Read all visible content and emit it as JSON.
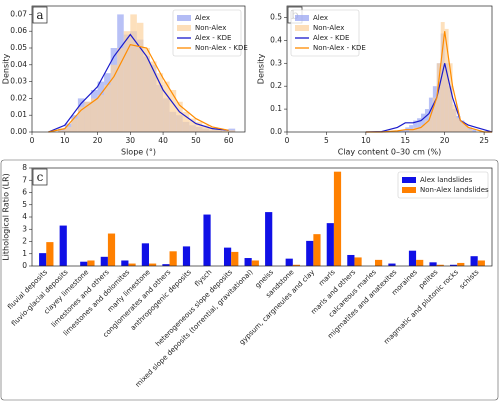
{
  "chart_data": [
    {
      "type": "histogram",
      "label": "a",
      "xlabel": "Slope (°)",
      "ylabel": "Density",
      "xlim": [
        0,
        65
      ],
      "xticks": [
        0,
        10,
        20,
        30,
        40,
        50,
        60
      ],
      "ylim": [
        0,
        0.075
      ],
      "yticks": [
        {
          "value": 0,
          "label": "0.00"
        },
        {
          "value": 0.01,
          "label": "0.01"
        },
        {
          "value": 0.02,
          "label": "0.02"
        },
        {
          "value": 0.03,
          "label": "0.03"
        },
        {
          "value": 0.04,
          "label": "0.04"
        },
        {
          "value": 0.05,
          "label": "0.05"
        },
        {
          "value": 0.06,
          "label": "0.06"
        },
        {
          "value": 0.07,
          "label": "0.07"
        }
      ],
      "legend": "upper right",
      "bins": [
        8,
        10,
        12,
        14,
        16,
        18,
        20,
        22,
        24,
        26,
        28,
        30,
        32,
        34,
        36,
        38,
        40,
        42,
        44,
        46,
        48,
        50,
        52,
        54,
        56,
        58,
        60,
        62
      ],
      "series": [
        {
          "name": "Alex",
          "color": "#9aa6f2",
          "values": [
            0.002,
            0.005,
            0.01,
            0.02,
            0.018,
            0.025,
            0.03,
            0.035,
            0.05,
            0.07,
            0.058,
            0.06,
            0.055,
            0.045,
            0.04,
            0.028,
            0.02,
            0.012,
            0.01,
            0.006,
            0.004,
            0.003,
            0.002,
            0.001,
            0.001,
            0,
            0.002
          ]
        },
        {
          "name": "Non-Alex",
          "color": "#fcd3a0",
          "values": [
            0.001,
            0.003,
            0.008,
            0.015,
            0.018,
            0.02,
            0.022,
            0.028,
            0.04,
            0.05,
            0.06,
            0.07,
            0.065,
            0.05,
            0.042,
            0.035,
            0.03,
            0.025,
            0.018,
            0.012,
            0.008,
            0.006,
            0.004,
            0.003,
            0.002,
            0.001,
            0.001
          ]
        },
        {
          "name": "Alex - KDE",
          "color": "#1a1acc",
          "kind": "line",
          "x": [
            5,
            10,
            15,
            20,
            25,
            30,
            35,
            40,
            45,
            50,
            55,
            60
          ],
          "values": [
            0,
            0.004,
            0.017,
            0.027,
            0.045,
            0.058,
            0.045,
            0.025,
            0.012,
            0.005,
            0.002,
            0.001
          ]
        },
        {
          "name": "Non-Alex - KDE",
          "color": "#ff8c00",
          "kind": "line",
          "x": [
            5,
            10,
            15,
            20,
            25,
            30,
            35,
            40,
            45,
            50,
            55,
            60
          ],
          "values": [
            0,
            0.002,
            0.013,
            0.02,
            0.033,
            0.052,
            0.05,
            0.032,
            0.016,
            0.008,
            0.003,
            0.001
          ]
        }
      ]
    },
    {
      "type": "histogram",
      "label": "b",
      "xlabel": "Clay content 0–30 cm (%)",
      "ylabel": "Density",
      "xlim": [
        0,
        26
      ],
      "xticks": [
        0,
        5,
        10,
        15,
        20,
        25
      ],
      "ylim": [
        0,
        0.55
      ],
      "yticks": [
        {
          "value": 0,
          "label": "0.0"
        },
        {
          "value": 0.1,
          "label": "0.1"
        },
        {
          "value": 0.2,
          "label": "0.2"
        },
        {
          "value": 0.3,
          "label": "0.3"
        },
        {
          "value": 0.4,
          "label": "0.4"
        },
        {
          "value": 0.5,
          "label": "0.5"
        }
      ],
      "legend": "upper left",
      "bins": [
        14,
        14.5,
        15,
        15.5,
        16,
        16.5,
        17,
        17.5,
        18,
        18.5,
        19,
        19.5,
        20,
        20.5,
        21,
        21.5,
        22,
        22.5,
        23,
        23.5,
        24
      ],
      "series": [
        {
          "name": "Alex",
          "color": "#9aa6f2",
          "values": [
            0.005,
            0.01,
            0.02,
            0.03,
            0.05,
            0.06,
            0.08,
            0.1,
            0.15,
            0.2,
            0.3,
            0.43,
            0.3,
            0.2,
            0.1,
            0.07,
            0.05,
            0.03,
            0.02,
            0.01
          ]
        },
        {
          "name": "Non-Alex",
          "color": "#fcd3a0",
          "values": [
            0,
            0,
            0,
            0.01,
            0.02,
            0.02,
            0.03,
            0.05,
            0.08,
            0.15,
            0.3,
            0.48,
            0.45,
            0.3,
            0.12,
            0.06,
            0.04,
            0.03,
            0.01,
            0
          ]
        },
        {
          "name": "Alex - KDE",
          "color": "#1a1acc",
          "kind": "line",
          "x": [
            10,
            12,
            14,
            15,
            16,
            17,
            18,
            19,
            20,
            21,
            22,
            23,
            24,
            25,
            26
          ],
          "values": [
            0,
            0.002,
            0.02,
            0.04,
            0.04,
            0.05,
            0.08,
            0.15,
            0.3,
            0.15,
            0.05,
            0.03,
            0.02,
            0.01,
            0
          ]
        },
        {
          "name": "Non-Alex - KDE",
          "color": "#ff8c00",
          "kind": "line",
          "x": [
            10,
            12,
            14,
            15,
            16,
            17,
            18,
            19,
            20,
            21,
            22,
            23,
            24,
            25,
            26
          ],
          "values": [
            0,
            0,
            0.005,
            0.01,
            0.01,
            0.02,
            0.05,
            0.15,
            0.44,
            0.2,
            0.05,
            0.02,
            0.01,
            0,
            0
          ]
        }
      ]
    },
    {
      "type": "bar",
      "label": "c",
      "ylabel": "Lithological Ratio (LR)",
      "ylim": [
        0,
        8
      ],
      "yticks": [
        0,
        1,
        2,
        3,
        4,
        5,
        6,
        7,
        8
      ],
      "legend": "upper right",
      "categories": [
        "fluvial deposits",
        "fluvio-glacial deposits",
        "clayey limestone",
        "limestones and others",
        "limestones and dolomites",
        "marly limestone",
        "conglomerates and others",
        "anthropogenic deposits",
        "flysch",
        "heterogeneous slope deposits",
        "mixed slope deposits (torrential, gravitational)",
        "gneiss",
        "sandstone",
        "gypsum, cargneules and clay",
        "marls",
        "marls and others",
        "calcareous marles",
        "migmatites and anatexites",
        "moraines",
        "pelites",
        "magmatic and plutonic rocks",
        "schists"
      ],
      "series": [
        {
          "name": "Alex landslides",
          "color": "#1010e6",
          "values": [
            1.05,
            3.3,
            0.35,
            0.75,
            0.45,
            1.85,
            0.15,
            1.6,
            4.2,
            1.5,
            0.65,
            4.4,
            0.6,
            2.05,
            3.5,
            0.9,
            0,
            0.2,
            1.25,
            0.3,
            0.1,
            0.8
          ]
        },
        {
          "name": "Non-Alex landslides",
          "color": "#ff8000",
          "values": [
            1.95,
            0,
            0.45,
            2.65,
            0.2,
            0.2,
            1.2,
            0,
            0,
            1.15,
            0.45,
            0,
            0.1,
            2.6,
            7.7,
            0.7,
            0.5,
            0,
            0.5,
            0.1,
            0.25,
            0.45
          ]
        }
      ]
    }
  ]
}
